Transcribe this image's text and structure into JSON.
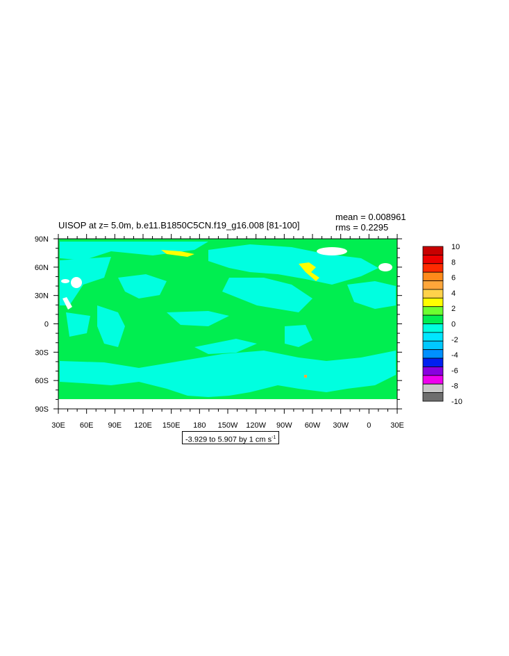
{
  "title": "UISOP at z=   5.0m, b.e11.B1850C5CN.f19_g16.008 [81-100]",
  "stats": {
    "mean": "mean = 0.008961",
    "rms": "rms = 0.2295"
  },
  "range_label": {
    "text": "-3.929 to 5.907 by 1 cm s",
    "sup": "-1"
  },
  "chart_data": {
    "type": "heatmap",
    "title": "UISOP at z=   5.0m, b.e11.B1850C5CN.f19_g16.008 [81-100]",
    "x_ticks": [
      "30E",
      "60E",
      "90E",
      "120E",
      "150E",
      "180",
      "150W",
      "120W",
      "90W",
      "60W",
      "30W",
      "0",
      "30E"
    ],
    "y_ticks": [
      "90N",
      "60N",
      "30N",
      "0",
      "30S",
      "60S",
      "90S"
    ],
    "colorbar": {
      "labels": [
        "10",
        "8",
        "6",
        "4",
        "2",
        "0",
        "-2",
        "-4",
        "-6",
        "-8",
        "-10"
      ],
      "colors": [
        "#c80000",
        "#ee0000",
        "#ff2a00",
        "#ff8a1a",
        "#ffa63a",
        "#ffd24a",
        "#ffff00",
        "#6cff30",
        "#00ee50",
        "#00ffe0",
        "#00e6ff",
        "#00c8ff",
        "#0090ff",
        "#0020f0",
        "#8800e0",
        "#ee00ee",
        "#c8c8c8",
        "#6e6e6e"
      ]
    },
    "dominant_values": {
      "positive_small": "0 to 2",
      "negative_small": "-2 to 0"
    },
    "field_range": [
      -3.929,
      5.907
    ],
    "contour_interval": 1,
    "units": "cm s-1"
  }
}
